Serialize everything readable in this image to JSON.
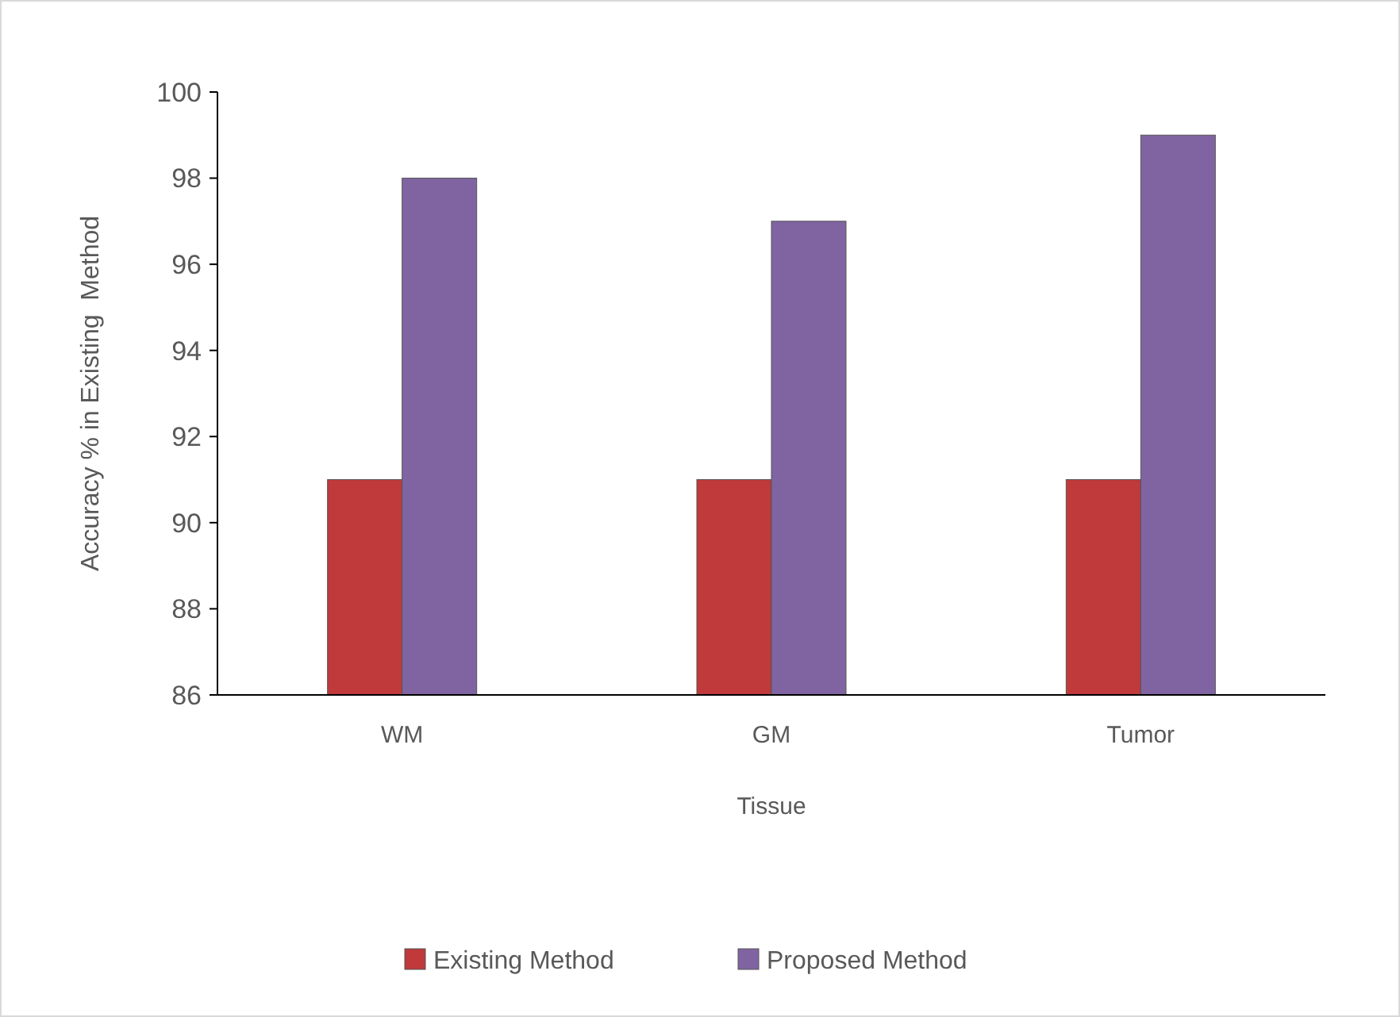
{
  "chart_data": {
    "type": "bar",
    "xlabel": "Tissue",
    "ylabel": "Accuracy % in Existing  Method",
    "categories": [
      "WM",
      "GM",
      "Tumor"
    ],
    "series": [
      {
        "name": "Existing Method",
        "color": "#c0393b",
        "values": [
          91,
          91,
          91
        ]
      },
      {
        "name": "Proposed Method",
        "color": "#8064a2",
        "values": [
          98,
          97,
          99
        ]
      }
    ],
    "ylim": [
      86,
      100
    ],
    "yticks": [
      86,
      88,
      90,
      92,
      94,
      96,
      98,
      100
    ],
    "grid": false,
    "legend": "bottom"
  }
}
